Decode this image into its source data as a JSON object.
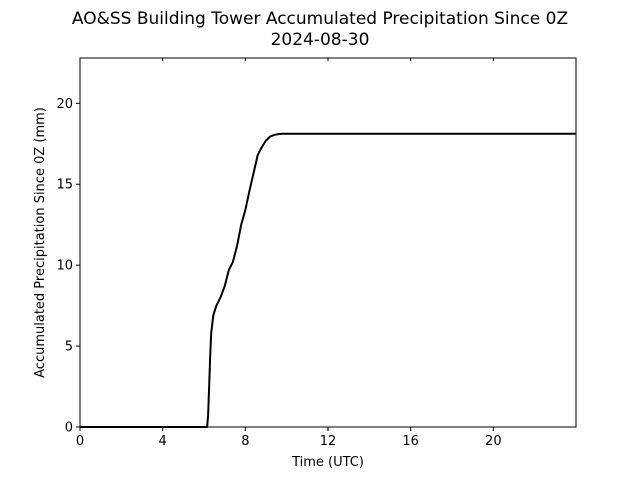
{
  "chart_data": {
    "type": "line",
    "title": "AO&SS Building Tower Accumulated Precipitation Since 0Z",
    "subtitle": "2024-08-30",
    "xlabel": "Time (UTC)",
    "ylabel": "Accumulated Precipitation Since 0Z (mm)",
    "xlim": [
      0,
      24
    ],
    "ylim": [
      0,
      22.8
    ],
    "xticks": [
      0,
      4,
      8,
      12,
      16,
      20
    ],
    "xtick_labels": [
      "0",
      "4",
      "8",
      "12",
      "16",
      "20"
    ],
    "yticks": [
      0,
      5,
      10,
      15,
      20
    ],
    "ytick_labels": [
      "0",
      "5",
      "10",
      "15",
      "20"
    ],
    "top_ticks": true,
    "grid": false,
    "legend": "none",
    "line_color": "#000000",
    "series": [
      {
        "x": [
          0,
          6.15,
          6.2,
          6.25,
          6.3,
          6.35,
          6.45,
          6.6,
          6.8,
          7.0,
          7.2,
          7.4,
          7.6,
          7.8,
          8.0,
          8.2,
          8.4,
          8.6,
          8.8,
          9.0,
          9.2,
          9.4,
          9.6,
          9.8,
          10.1,
          10.5,
          11,
          12,
          16,
          20,
          24
        ],
        "y": [
          0,
          0,
          0.7,
          2.6,
          4.4,
          5.8,
          6.9,
          7.5,
          8.0,
          8.7,
          9.7,
          10.2,
          11.2,
          12.5,
          13.4,
          14.6,
          15.7,
          16.8,
          17.3,
          17.7,
          17.95,
          18.05,
          18.1,
          18.12,
          18.12,
          18.12,
          18.12,
          18.12,
          18.12,
          18.12,
          18.12
        ]
      }
    ]
  }
}
